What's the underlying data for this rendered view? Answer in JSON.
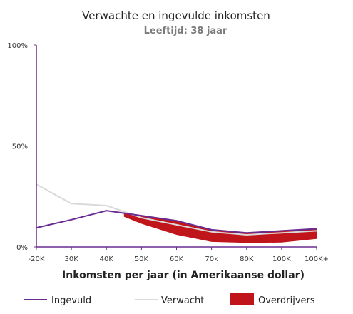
{
  "colors": {
    "ingevuld": "#6a2c91",
    "verwacht": "#d9d9d9",
    "overdrijvers": "#c0151b",
    "axis": "#6a2c91"
  },
  "chart_data": {
    "type": "line",
    "title": "Verwachte en ingevulde inkomsten",
    "subtitle": "Leeftijd: 38 jaar",
    "xlabel": "Inkomsten per jaar (in Amerikaanse dollar)",
    "ylabel": "",
    "categories": [
      "-20K",
      "30K",
      "40K",
      "50K",
      "60K",
      "70k",
      "80K",
      "100K",
      "100K+"
    ],
    "yticks": [
      "0%",
      "50%",
      "100%"
    ],
    "ylim": [
      0,
      100
    ],
    "grid": false,
    "legend_position": "bottom",
    "series": [
      {
        "name": "Ingevuld",
        "type": "line",
        "values": [
          9.5,
          13.5,
          18,
          15.5,
          13,
          8.5,
          7,
          8,
          9
        ]
      },
      {
        "name": "Verwacht",
        "type": "line",
        "values": [
          31,
          21.5,
          20.5,
          14.5,
          11,
          7.5,
          6,
          7,
          8
        ]
      },
      {
        "name": "Overdrijvers",
        "type": "area",
        "x": [
          2.5,
          3,
          4,
          5,
          6,
          7,
          8
        ],
        "upper": [
          16.5,
          15.2,
          13,
          8.6,
          7,
          8,
          9
        ],
        "lower": [
          15,
          11.5,
          6,
          2.5,
          2,
          2.2,
          4
        ]
      }
    ],
    "legend": [
      "Ingevuld",
      "Verwacht",
      "Overdrijvers"
    ]
  }
}
